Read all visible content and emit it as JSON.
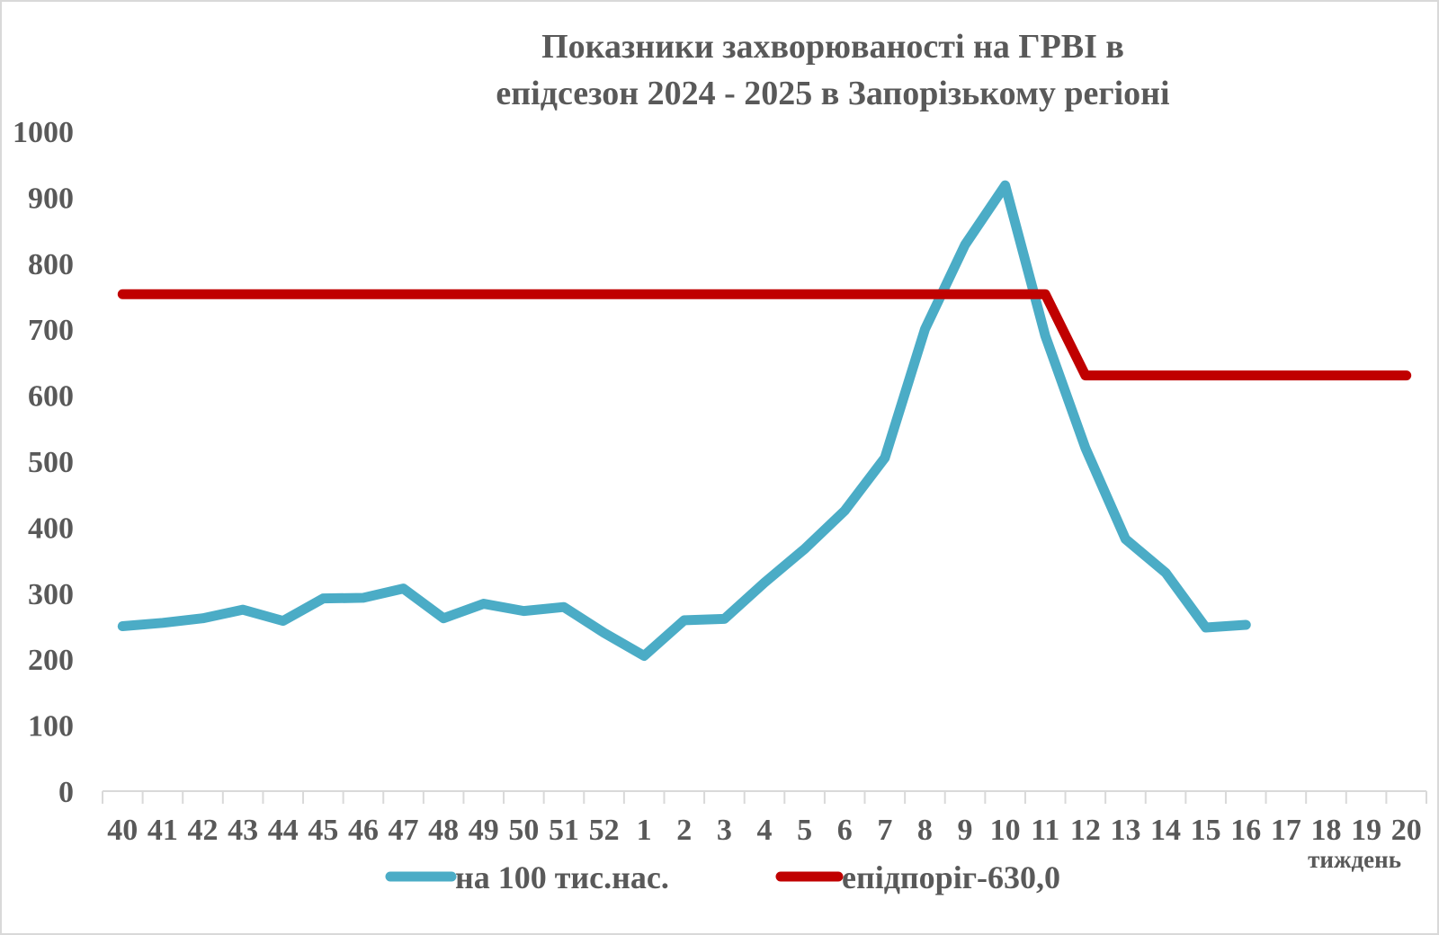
{
  "chart_data": {
    "type": "line",
    "title_line1": "Показники захворюваності на ГРВІ в",
    "title_line2": "епідсезон 2024 - 2025 в Запорізькому регіоні",
    "xlabel": "тиждень",
    "ylabel": "",
    "ylim": [
      0,
      1000
    ],
    "yticks": [
      "0",
      "100",
      "200",
      "300",
      "400",
      "500",
      "600",
      "700",
      "800",
      "900",
      "1000"
    ],
    "categories": [
      "40",
      "41",
      "42",
      "43",
      "44",
      "45",
      "46",
      "47",
      "48",
      "49",
      "50",
      "51",
      "52",
      "1",
      "2",
      "3",
      "4",
      "5",
      "6",
      "7",
      "8",
      "9",
      "10",
      "11",
      "12",
      "13",
      "14",
      "15",
      "16",
      "17",
      "18",
      "19",
      "20"
    ],
    "grid": false,
    "legend_position": "bottom",
    "series": [
      {
        "name": "на 100 тис.нас.",
        "color": "#4bacc6",
        "values": [
          250,
          255,
          262,
          275,
          258,
          292,
          293,
          307,
          262,
          284,
          273,
          279,
          240,
          205,
          259,
          261,
          316,
          367,
          425,
          505,
          700,
          828,
          918,
          690,
          520,
          382,
          331,
          248,
          252,
          null,
          null,
          null,
          null
        ]
      },
      {
        "name": "епідпоріг-630,0",
        "color": "#c00000",
        "values": [
          753,
          753,
          753,
          753,
          753,
          753,
          753,
          753,
          753,
          753,
          753,
          753,
          753,
          753,
          753,
          753,
          753,
          753,
          753,
          753,
          753,
          753,
          753,
          753,
          630,
          630,
          630,
          630,
          630,
          630,
          630,
          630,
          630
        ]
      }
    ]
  }
}
